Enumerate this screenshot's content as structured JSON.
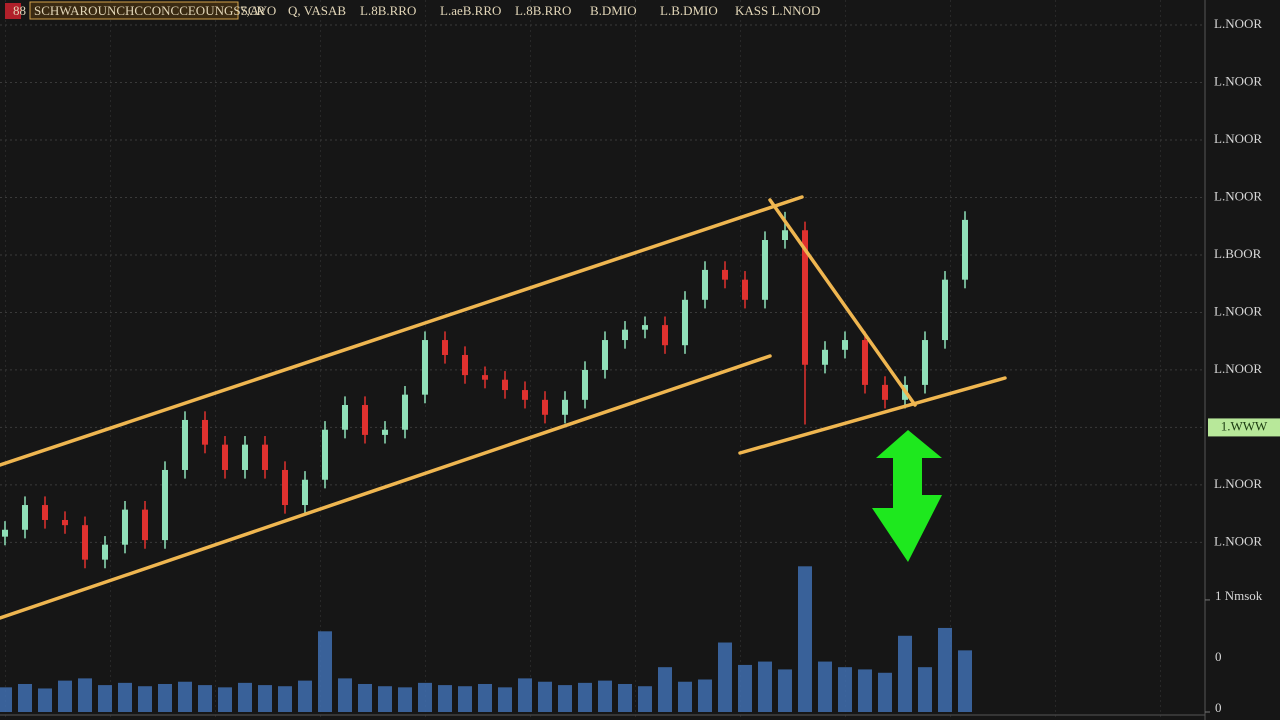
{
  "chart_data": {
    "type": "candlestick",
    "header": [
      "88",
      "SCHWAROUNCHCCONCCEOUNGSSCR",
      "7,AVO",
      "Q, VASAB",
      "L.8B.RRO",
      "L.aeB.RRO",
      "L.8B.RRO",
      "B.DMIO",
      "L.B.DMIO",
      "KASS L.NNOD"
    ],
    "opens": [
      3.1,
      3.22,
      3.65,
      3.39,
      3.3,
      2.7,
      2.96,
      3.57,
      3.04,
      4.26,
      5.13,
      4.7,
      4.26,
      4.7,
      4.26,
      3.65,
      4.09,
      4.96,
      5.39,
      4.87,
      4.96,
      5.57,
      6.52,
      6.26,
      5.91,
      5.83,
      5.65,
      5.48,
      5.22,
      5.48,
      6.0,
      6.52,
      6.7,
      6.78,
      6.43,
      7.22,
      7.74,
      7.57,
      7.22,
      8.26,
      8.43,
      6.09,
      6.35,
      6.52,
      5.74,
      5.48,
      5.74,
      6.52,
      7.57
    ],
    "highs": [
      3.37,
      3.8,
      3.8,
      3.54,
      3.45,
      3.11,
      3.72,
      3.72,
      4.41,
      5.28,
      5.28,
      4.85,
      4.85,
      4.85,
      4.41,
      4.24,
      5.11,
      5.54,
      5.54,
      5.11,
      5.72,
      6.67,
      6.67,
      6.41,
      6.06,
      5.98,
      5.8,
      5.63,
      5.63,
      6.15,
      6.67,
      6.85,
      6.93,
      6.93,
      7.37,
      7.89,
      7.89,
      7.72,
      8.41,
      8.75,
      8.58,
      6.5,
      6.67,
      6.67,
      5.89,
      5.89,
      6.67,
      7.72,
      8.76
    ],
    "lows": [
      2.95,
      3.07,
      3.24,
      3.15,
      2.55,
      2.55,
      2.81,
      2.89,
      2.89,
      4.11,
      4.55,
      4.11,
      4.11,
      4.11,
      3.5,
      3.5,
      3.94,
      4.81,
      4.72,
      4.72,
      4.81,
      5.42,
      6.11,
      5.76,
      5.68,
      5.5,
      5.33,
      5.07,
      5.07,
      5.33,
      5.85,
      6.37,
      6.55,
      6.28,
      6.28,
      7.07,
      7.42,
      7.07,
      7.07,
      8.11,
      5.05,
      5.94,
      6.2,
      5.59,
      5.33,
      5.33,
      5.59,
      6.37,
      7.42
    ],
    "closes": [
      3.22,
      3.65,
      3.39,
      3.3,
      2.7,
      2.96,
      3.57,
      3.04,
      4.26,
      5.13,
      4.7,
      4.26,
      4.7,
      4.26,
      3.65,
      4.09,
      4.96,
      5.39,
      4.87,
      4.96,
      5.57,
      6.52,
      6.26,
      5.91,
      5.83,
      5.65,
      5.48,
      5.22,
      5.48,
      6.0,
      6.52,
      6.7,
      6.78,
      6.43,
      7.22,
      7.74,
      7.57,
      7.22,
      8.26,
      8.43,
      6.09,
      6.35,
      6.52,
      5.74,
      5.48,
      5.74,
      6.52,
      7.57,
      8.61
    ],
    "up_color": "#8fe0b8",
    "down_color": "#e0312f",
    "volume": {
      "color": "#3f6fb0",
      "values": [
        0.22,
        0.25,
        0.21,
        0.28,
        0.3,
        0.24,
        0.26,
        0.23,
        0.25,
        0.27,
        0.24,
        0.22,
        0.26,
        0.24,
        0.23,
        0.28,
        0.72,
        0.3,
        0.25,
        0.23,
        0.22,
        0.26,
        0.24,
        0.23,
        0.25,
        0.22,
        0.3,
        0.27,
        0.24,
        0.26,
        0.28,
        0.25,
        0.23,
        0.4,
        0.27,
        0.29,
        0.62,
        0.42,
        0.45,
        0.38,
        1.3,
        0.45,
        0.4,
        0.38,
        0.35,
        0.68,
        0.4,
        0.75,
        0.55
      ]
    },
    "ylim": [
      0.05,
      12
    ],
    "yticks": [
      {
        "value": 12,
        "label": "L.NOOR"
      },
      {
        "value": 11,
        "label": "L.NOOR"
      },
      {
        "value": 10,
        "label": "L.NOOR"
      },
      {
        "value": 9,
        "label": "L.NOOR"
      },
      {
        "value": 8,
        "label": "L.BOOR"
      },
      {
        "value": 7,
        "label": "L.NOOR"
      },
      {
        "value": 6,
        "label": "L.NOOR"
      },
      {
        "value": 4,
        "label": "L.NOOR"
      },
      {
        "value": 3,
        "label": "L.NOOR"
      }
    ],
    "last_price": {
      "value": 5,
      "label": "1.WWW"
    },
    "y2lim": [
      0,
      6.13
    ],
    "y2ticks": [
      0,
      {
        "value": 1,
        "label": "1 Nmsok"
      }
    ],
    "annotations": [
      "0"
    ],
    "grid": true
  }
}
